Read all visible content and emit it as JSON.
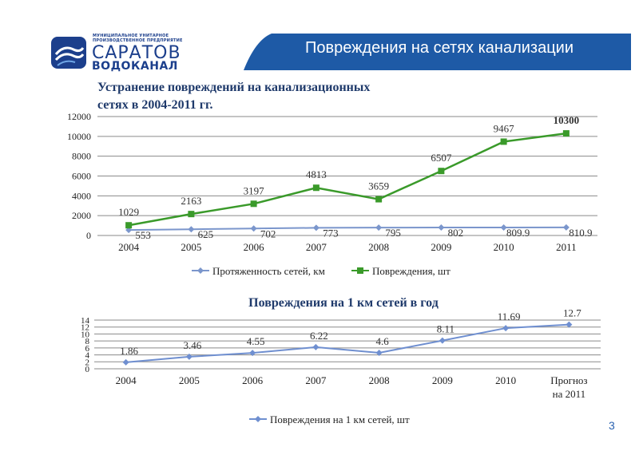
{
  "header": {
    "title": "Повреждения на сетях канализации",
    "bar_color": "#1e5aa6"
  },
  "logo": {
    "small_text": "МУНИЦИПАЛЬНОЕ УНИТАРНОЕ ПРОИЗВОДСТВЕННОЕ ПРЕДПРИЯТИЕ",
    "main_text": "САРАТОВ",
    "sub_text": "ВОДОКАНАЛ",
    "brand_color": "#1c3f8c"
  },
  "page_number": "3",
  "chart_data": [
    {
      "type": "line",
      "title": "Устранение повреждений на канализационных  сетях в 2004-2011 гг.",
      "categories": [
        "2004",
        "2005",
        "2006",
        "2007",
        "2008",
        "2009",
        "2010",
        "2011"
      ],
      "ylim": [
        0,
        12000
      ],
      "yticks": [
        0,
        2000,
        4000,
        6000,
        8000,
        10000,
        12000
      ],
      "grid": true,
      "legend": "bottom",
      "series": [
        {
          "name": "Протяженность сетей, км",
          "values": [
            553,
            625,
            702,
            773,
            795,
            802,
            809.9,
            810.9
          ],
          "labels": [
            "553",
            "625",
            "702",
            "773",
            "795",
            "802",
            "809.9",
            "810.9"
          ],
          "color": "#7b96cc",
          "marker": "diamond"
        },
        {
          "name": "Повреждения, шт",
          "values": [
            1029,
            2163,
            3197,
            4813,
            3659,
            6507,
            9467,
            10300
          ],
          "labels": [
            "1029",
            "2163",
            "3197",
            "4813",
            "3659",
            "6507",
            "9467",
            "10300"
          ],
          "color": "#3a9a2a",
          "marker": "square"
        }
      ]
    },
    {
      "type": "line",
      "title": "Повреждения на 1 км сетей в год",
      "categories": [
        "2004",
        "2005",
        "2006",
        "2007",
        "2008",
        "2009",
        "2010",
        "Прогноз на 2011"
      ],
      "category_lines": [
        [
          "2004"
        ],
        [
          "2005"
        ],
        [
          "2006"
        ],
        [
          "2007"
        ],
        [
          "2008"
        ],
        [
          "2009"
        ],
        [
          "2010"
        ],
        [
          "Прогноз",
          "на 2011"
        ]
      ],
      "ylim": [
        0,
        14
      ],
      "yticks": [
        0,
        2,
        4,
        6,
        8,
        10,
        12,
        14
      ],
      "ytick_labels": [
        "0",
        "2",
        "4",
        "6",
        "8",
        "10",
        "12",
        "14"
      ],
      "grid": true,
      "legend": "bottom",
      "series": [
        {
          "name": "Повреждения на 1 км сетей, шт",
          "values": [
            1.86,
            3.46,
            4.55,
            6.22,
            4.6,
            8.11,
            11.69,
            12.7
          ],
          "labels": [
            "1.86",
            "3.46",
            "4.55",
            "6.22",
            "4.6",
            "8.11",
            "11.69",
            "12.7"
          ],
          "color": "#6f8fd0",
          "marker": "diamond"
        }
      ]
    }
  ]
}
